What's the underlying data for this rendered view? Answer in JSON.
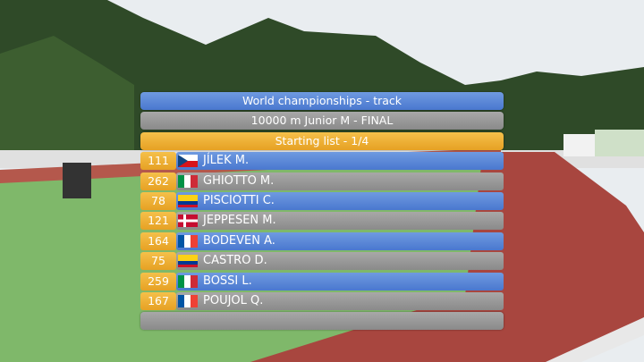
{
  "header": {
    "title": "World championships - track",
    "event": "10000 m Junior M - FINAL",
    "list": "Starting list - 1/4"
  },
  "athletes": [
    {
      "bib": 111,
      "name": "JÍLEK M."
    },
    {
      "bib": 262,
      "name": "GHIOTTO M."
    },
    {
      "bib": 78,
      "name": "PISCIOTTI C."
    },
    {
      "bib": 121,
      "name": "JEPPESEN M."
    },
    {
      "bib": 164,
      "name": "BODEVEN A."
    },
    {
      "bib": 75,
      "name": "CASTRO D."
    },
    {
      "bib": 259,
      "name": "BOSSI L."
    },
    {
      "bib": 167,
      "name": "POUJOL Q."
    }
  ]
}
